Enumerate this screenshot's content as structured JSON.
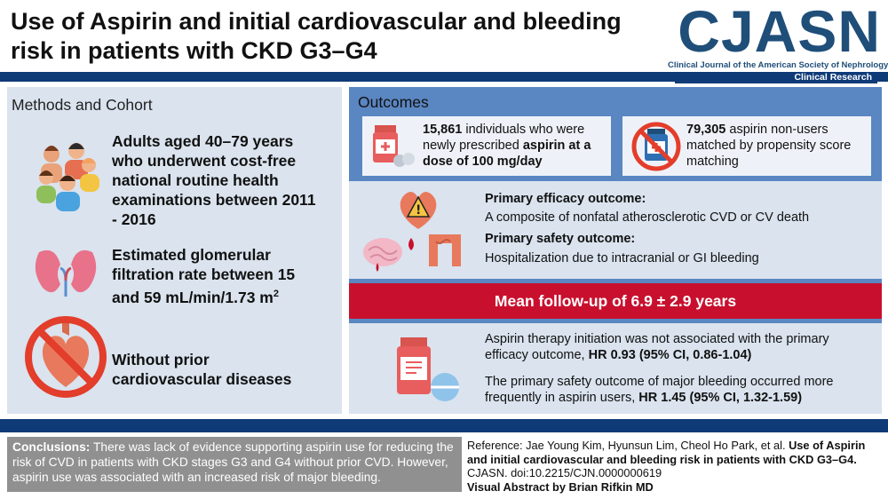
{
  "header": {
    "title": "Use of Aspirin and initial cardiovascular and bleeding risk in patients with CKD G3–G4",
    "logo": "CJASN",
    "logo_sub": "Clinical Journal of the American Society of Nephrology",
    "section": "Clinical Research"
  },
  "methods": {
    "title": "Methods and Cohort",
    "item1": "Adults aged 40–79 years who underwent cost-free national routine health examinations between 2011 - 2016",
    "item2_a": "Estimated glomerular filtration rate between 15 and 59 mL/min/1.73 m",
    "item2_sup": "2",
    "item3": "Without prior cardiovascular diseases",
    "icons": [
      "people-group-icon",
      "kidneys-icon",
      "no-heart-icon"
    ]
  },
  "outcomes": {
    "title": "Outcomes",
    "card1_num": "15,861",
    "card1_a": " individuals who were newly prescribed ",
    "card1_b": "aspirin at a dose of 100 mg/day",
    "card2_num": "79,305",
    "card2_a": " aspirin non-users matched by propensity score matching",
    "efficacy_title": "Primary efficacy outcome:",
    "efficacy_text": "A composite of nonfatal atherosclerotic CVD or CV death",
    "safety_title": "Primary safety outcome:",
    "safety_text": "Hospitalization due to intracranial or GI bleeding",
    "followup": "Mean follow-up of 6.9 ± 2.9 years",
    "result1_a": "Aspirin therapy initiation was not associated with the primary efficacy outcome, ",
    "result1_b": "HR 0.93 (95% CI, 0.86-1.04)",
    "result2_a": "The primary safety outcome of major bleeding occurred more frequently in aspirin users, ",
    "result2_b": "HR 1.45 (95% CI, 1.32-1.59)",
    "icons": [
      "pill-bottle-icon",
      "no-pill-bottle-icon",
      "heart-brain-gut-icon",
      "pills-icon"
    ]
  },
  "conclusions": {
    "label": "Conclusions:",
    "text": " There was lack of evidence supporting aspirin use for reducing the risk of CVD in patients with CKD stages G3 and G4 without prior CVD. However, aspirin use was associated with an increased risk of major bleeding."
  },
  "reference": {
    "prefix": "Reference: Jae Young Kim, Hyunsun Lim, Cheol Ho Park, et al. ",
    "bold_title": "Use of Aspirin and initial cardiovascular and bleeding risk in patients with CKD G3–G4.",
    "suffix": " CJASN. doi:10.2215/CJN.0000000619",
    "credit": "Visual Abstract by Brian Rifkin MD"
  },
  "colors": {
    "navy": "#0f3a78",
    "panel_light": "#dae3ee",
    "panel_blue": "#5a86c2",
    "red": "#c8102e",
    "grey": "#909090"
  }
}
